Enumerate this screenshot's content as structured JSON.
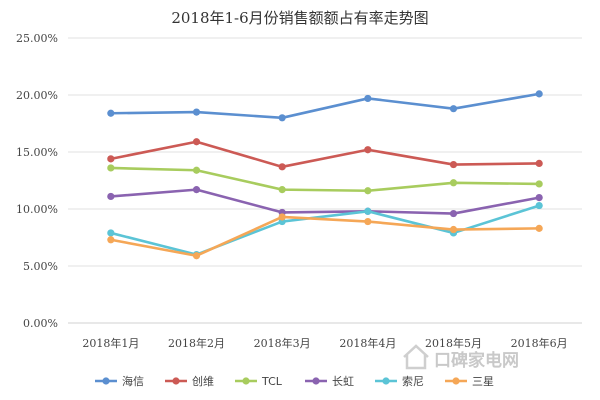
{
  "chart_data": {
    "type": "line",
    "title": "2018年1-6月份销售额额占有率走势图",
    "xlabel": "",
    "ylabel": "",
    "categories": [
      "2018年1月",
      "2018年2月",
      "2018年3月",
      "2018年4月",
      "2018年5月",
      "2018年6月"
    ],
    "ylim": [
      0,
      25
    ],
    "yticks": [
      "0.00%",
      "5.00%",
      "10.00%",
      "15.00%",
      "20.00%",
      "25.00%"
    ],
    "grid": true,
    "legend_position": "bottom",
    "series": [
      {
        "name": "海信",
        "color": "#5b8fd0",
        "values": [
          18.4,
          18.5,
          18.0,
          19.7,
          18.8,
          20.1
        ]
      },
      {
        "name": "创维",
        "color": "#cc5a55",
        "values": [
          14.4,
          15.9,
          13.7,
          15.2,
          13.9,
          14.0
        ]
      },
      {
        "name": "TCL",
        "color": "#a8cc5e",
        "values": [
          13.6,
          13.4,
          11.7,
          11.6,
          12.3,
          12.2
        ]
      },
      {
        "name": "长虹",
        "color": "#8a63b0",
        "values": [
          11.1,
          11.7,
          9.7,
          9.8,
          9.6,
          11.0
        ]
      },
      {
        "name": "索尼",
        "color": "#5bc4d6",
        "values": [
          7.9,
          6.0,
          8.9,
          9.8,
          7.9,
          10.3
        ]
      },
      {
        "name": "三星",
        "color": "#f5a757",
        "values": [
          7.3,
          5.9,
          9.3,
          8.9,
          8.2,
          8.3
        ]
      }
    ]
  },
  "watermark": {
    "icon": "house-icon",
    "text": "口碑家电网"
  }
}
